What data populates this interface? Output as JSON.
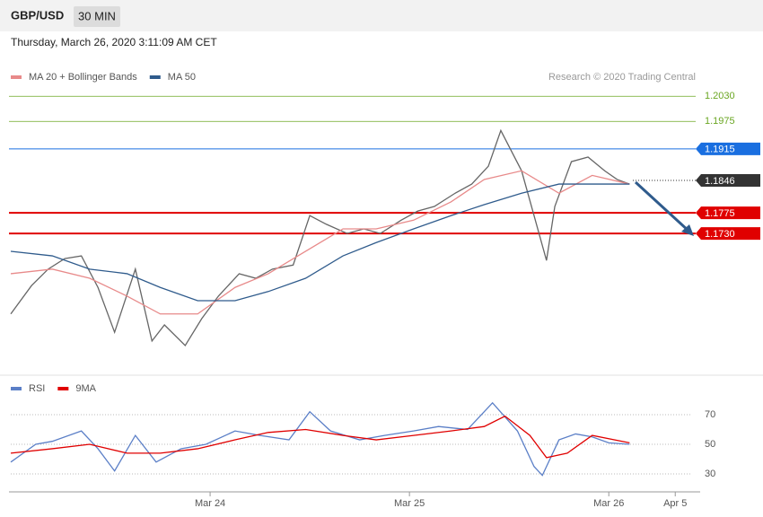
{
  "header": {
    "symbol": "GBP/USD",
    "interval": "30 MIN"
  },
  "timestamp": "Thursday, March 26, 2020 3:11:09 AM CET",
  "chart_data": [
    {
      "type": "line",
      "source": "Research © 2020 Trading Central",
      "xlim": [
        0,
        166
      ],
      "ylim": [
        1.1426,
        1.2054
      ],
      "series": [
        {
          "color": "#666666",
          "x": [
            0,
            5,
            9,
            13,
            17,
            21,
            25,
            30,
            34,
            37,
            42,
            46,
            50,
            55,
            59,
            63,
            68,
            72,
            76,
            81,
            85,
            89,
            94,
            98,
            102,
            107,
            111,
            115,
            118,
            123,
            126,
            129,
            131,
            135,
            139,
            143,
            146,
            149
          ],
          "values": [
            1.1554,
            1.1616,
            1.1652,
            1.1675,
            1.1681,
            1.1612,
            1.1514,
            1.1652,
            1.1495,
            1.153,
            1.1485,
            1.1544,
            1.1593,
            1.1642,
            1.1632,
            1.1652,
            1.1661,
            1.1769,
            1.175,
            1.173,
            1.174,
            1.173,
            1.1759,
            1.1779,
            1.1789,
            1.1818,
            1.1838,
            1.1877,
            1.1955,
            1.1867,
            1.1769,
            1.1671,
            1.1789,
            1.1887,
            1.1897,
            1.1867,
            1.1848,
            1.1838
          ]
        },
        {
          "name": "MA 20 + Bollinger Bands",
          "color": "#e88a8a",
          "x": [
            0,
            10,
            19,
            28,
            36,
            45,
            54,
            62,
            71,
            80,
            88,
            97,
            106,
            114,
            123,
            132,
            140,
            149
          ],
          "values": [
            1.1642,
            1.1652,
            1.1632,
            1.1593,
            1.1554,
            1.1554,
            1.1612,
            1.1642,
            1.1691,
            1.174,
            1.174,
            1.1759,
            1.1799,
            1.1848,
            1.1867,
            1.1818,
            1.1857,
            1.1838
          ]
        },
        {
          "name": "MA 50",
          "color": "#2f5b8c",
          "x": [
            0,
            10,
            19,
            28,
            36,
            45,
            54,
            62,
            71,
            80,
            88,
            97,
            106,
            114,
            123,
            132,
            140,
            149
          ],
          "values": [
            1.1691,
            1.1681,
            1.1652,
            1.1642,
            1.1612,
            1.1583,
            1.1583,
            1.1603,
            1.1632,
            1.1681,
            1.171,
            1.174,
            1.1769,
            1.1793,
            1.1818,
            1.1838,
            1.1838,
            1.1838
          ]
        }
      ],
      "levels": [
        {
          "value": 1.203,
          "label": "1.2030",
          "color": "#6aa622",
          "style": "thin"
        },
        {
          "value": 1.1975,
          "label": "1.1975",
          "color": "#6aa622",
          "style": "thin"
        },
        {
          "value": 1.1915,
          "label": "1.1915",
          "color": "#1a6fe0",
          "style": "line"
        },
        {
          "value": 1.1846,
          "label": "1.1846",
          "color": "#333333",
          "style": "dotted"
        },
        {
          "value": 1.1775,
          "label": "1.1775",
          "color": "#e00000",
          "style": "thick"
        },
        {
          "value": 1.173,
          "label": "1.1730",
          "color": "#e00000",
          "style": "thick"
        }
      ]
    },
    {
      "type": "line",
      "xlim": [
        0,
        166
      ],
      "ylim": [
        20,
        80
      ],
      "yticks": [
        30,
        50,
        70
      ],
      "grid": true,
      "xticks": [
        {
          "value": 48,
          "label": "Mar 24"
        },
        {
          "value": 96,
          "label": "Mar 25"
        },
        {
          "value": 144,
          "label": "Mar 26"
        },
        {
          "value": 160,
          "label": "Apr 5"
        }
      ],
      "series": [
        {
          "name": "RSI",
          "color": "#5b7fc7",
          "x": [
            0,
            6,
            10,
            17,
            21,
            25,
            30,
            35,
            41,
            47,
            54,
            60,
            67,
            72,
            77,
            84,
            90,
            97,
            103,
            110,
            116,
            122,
            126,
            128,
            132,
            136,
            140,
            144,
            149
          ],
          "values": [
            38,
            50,
            52,
            59,
            47,
            32,
            56,
            38,
            47,
            50,
            59,
            56,
            53,
            72,
            59,
            53,
            56,
            59,
            62,
            60,
            78,
            59,
            35,
            29,
            53,
            57,
            55,
            51,
            50
          ]
        },
        {
          "name": "9MA",
          "color": "#e00000",
          "x": [
            0,
            10,
            19,
            28,
            36,
            45,
            54,
            62,
            71,
            80,
            88,
            97,
            106,
            114,
            119,
            125,
            129,
            134,
            140,
            149
          ],
          "values": [
            44,
            47,
            50,
            44,
            44,
            47,
            53,
            58,
            60,
            56,
            53,
            56,
            59,
            62,
            69,
            56,
            41,
            44,
            56,
            51
          ]
        }
      ]
    }
  ]
}
